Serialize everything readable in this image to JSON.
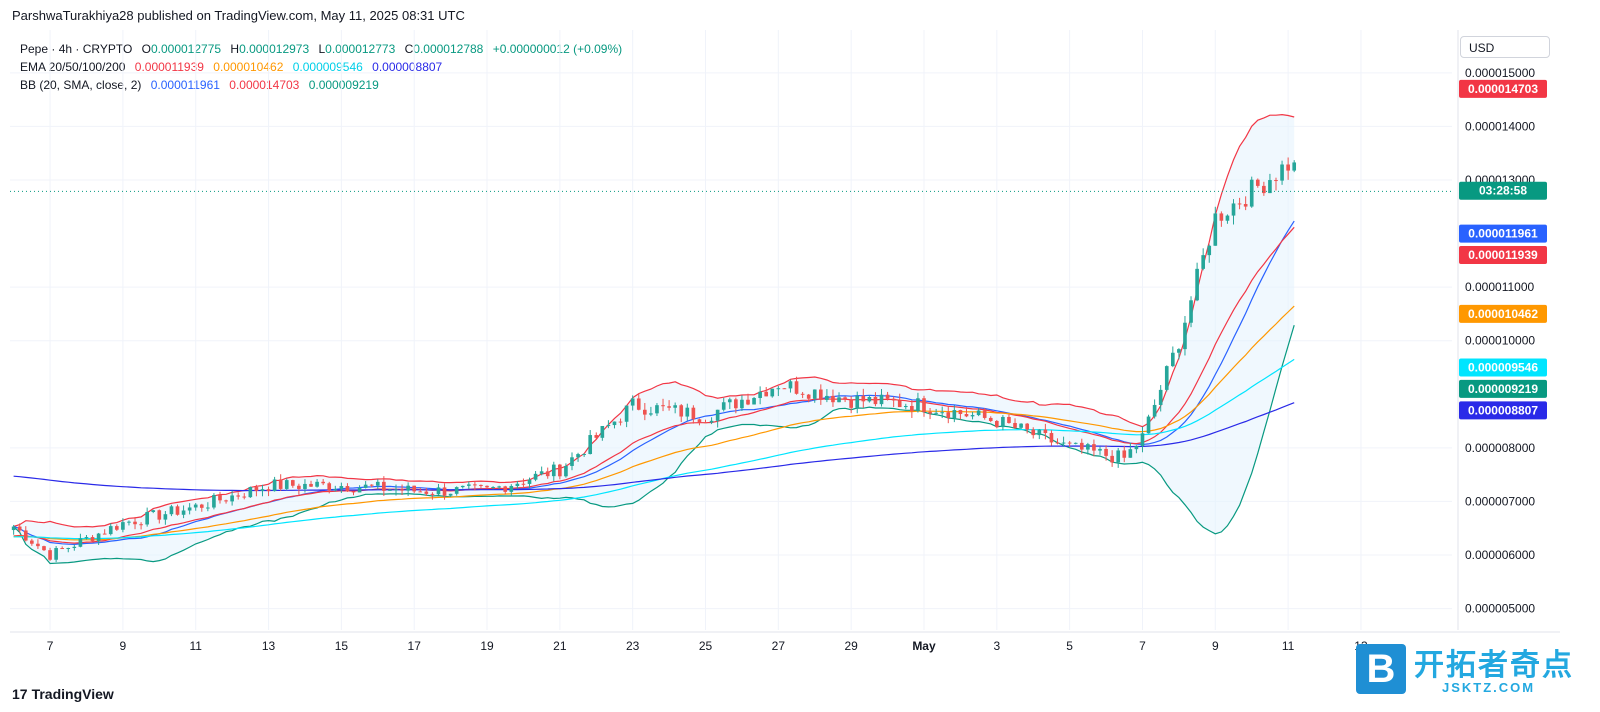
{
  "header": {
    "attribution": "ParshwaTurakhiya28 published on TradingView.com, May 11, 2025 08:31 UTC"
  },
  "legend": {
    "symbol": "Pepe · 4h · CRYPTO",
    "ohlc": [
      {
        "label": "O",
        "value": "0.000012775"
      },
      {
        "label": "H",
        "value": "0.000012973"
      },
      {
        "label": "L",
        "value": "0.000012773"
      },
      {
        "label": "C",
        "value": "0.000012788"
      }
    ],
    "change": "+0.000000012 (+0.09%)",
    "ema_label": "EMA 20/50/100/200",
    "ema_values": [
      "0.000011939",
      "0.000010462",
      "0.000009546",
      "0.000008807"
    ],
    "bb_label": "BB (20, SMA, close, 2)",
    "bb_values": [
      "0.000011961",
      "0.000014703",
      "0.000009219"
    ]
  },
  "currency": "USD",
  "footer": {
    "brand": "TradingView",
    "brand_mark": "17"
  },
  "watermark": {
    "box_letter": "B",
    "text": "开拓者奇点",
    "url": "JSKTZ.COM"
  },
  "colors": {
    "up": "#26a69a",
    "down": "#ef5350",
    "ema20": "#f23645",
    "ema50": "#ff9800",
    "ema100": "#00e5ff",
    "ema200": "#2a2ae8",
    "bb_basis": "#2962ff",
    "bb_upper": "#f23645",
    "bb_lower": "#089981",
    "bb_fill": "#e3f2fd"
  },
  "chart_data": {
    "type": "line",
    "instrument": "Pepe · 4h · CRYPTO",
    "x_tick_labels": [
      "7",
      "9",
      "11",
      "13",
      "15",
      "17",
      "19",
      "21",
      "23",
      "25",
      "27",
      "29",
      "May",
      "3",
      "5",
      "7",
      "9",
      "11",
      "13"
    ],
    "y_tick_labels": [
      "0.000015000",
      "0.000014000",
      "0.000013000",
      "0.000011000",
      "0.000010000",
      "0.000008000",
      "0.000007000",
      "0.000006000",
      "0.000005000"
    ],
    "ylim": [
      4.6e-06,
      1.58e-05
    ],
    "countdown": "03:28:58",
    "price_tags": [
      {
        "value": "0.000014703",
        "color": "#f23645"
      },
      {
        "value": "0.000011961",
        "color": "#2962ff"
      },
      {
        "value": "0.000011939",
        "color": "#f23645"
      },
      {
        "value": "0.000010462",
        "color": "#ff9800"
      },
      {
        "value": "0.000009546",
        "color": "#00e5ff"
      },
      {
        "value": "0.000009219",
        "color": "#089981"
      },
      {
        "value": "0.000008807",
        "color": "#2a2ae8"
      }
    ],
    "last_price": 1.2788e-05,
    "price_series": {
      "name": "Pepe",
      "day": [
        5.5,
        7,
        9,
        11,
        13,
        15,
        17,
        19,
        21,
        23,
        25,
        27,
        29,
        31,
        33,
        35,
        36.5,
        37,
        38,
        39,
        40,
        41,
        42
      ],
      "close": [
        6.8e-06,
        6e-06,
        6.6e-06,
        6.9e-06,
        7.3e-06,
        7.3e-06,
        7.2e-06,
        7.2e-06,
        7.6e-06,
        8.8e-06,
        8.6e-06,
        9.2e-06,
        8.9e-06,
        8.8e-06,
        8.5e-06,
        8e-06,
        7.8e-06,
        8.2e-06,
        1e-05,
        1.23e-05,
        1.28e-05,
        1.33e-05,
        1.28e-05
      ]
    }
  }
}
